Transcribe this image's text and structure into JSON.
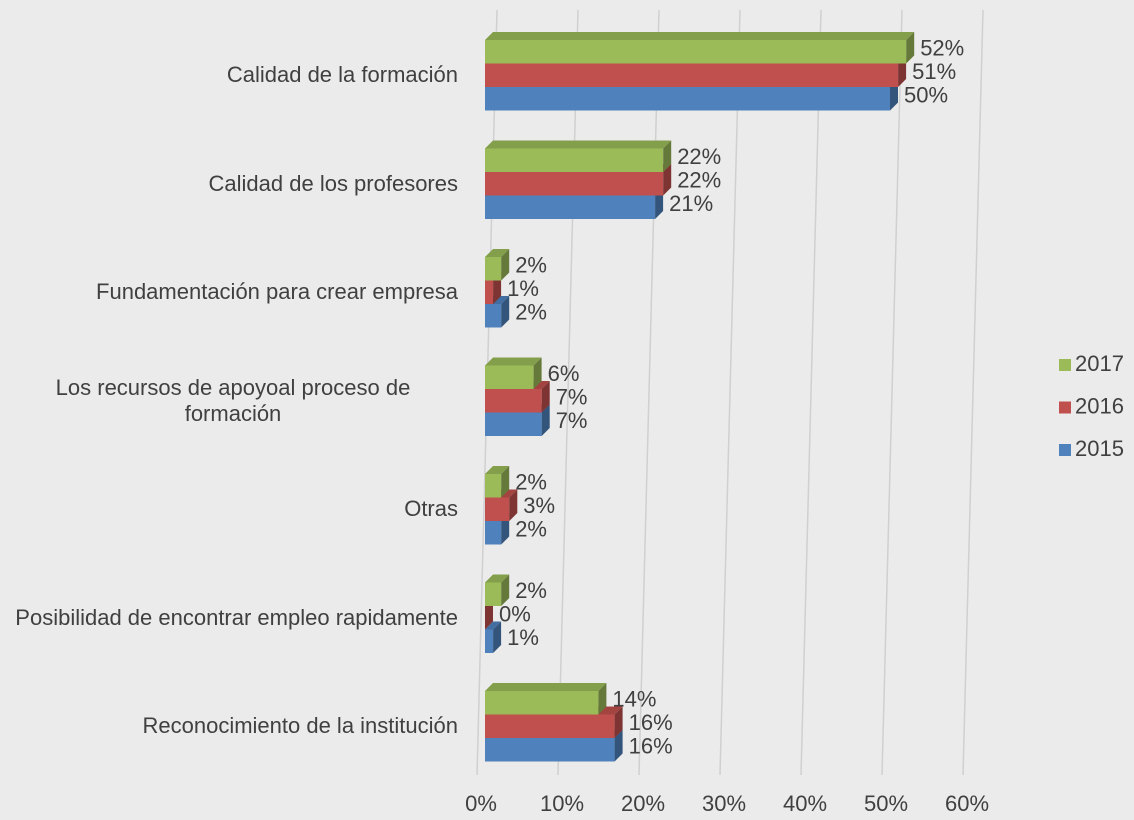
{
  "chart_data": {
    "type": "bar3d_horizontal",
    "categories": [
      "Calidad de la formación",
      "Calidad de los profesores",
      "Fundamentación para crear empresa",
      "Los recursos de apoyoal proceso de formación",
      "Otras",
      "Posibilidad de encontrar empleo rapidamente",
      "Reconocimiento de la institución"
    ],
    "series": [
      {
        "name": "2017",
        "color": "#9bbb59",
        "values": [
          52,
          22,
          2,
          6,
          2,
          2,
          14
        ],
        "value_labels": [
          "52%",
          "22%",
          "2%",
          "6%",
          "2%",
          "2%",
          "14%"
        ]
      },
      {
        "name": "2016",
        "color": "#c0504d",
        "values": [
          51,
          22,
          1,
          7,
          3,
          0,
          16
        ],
        "value_labels": [
          "51%",
          "22%",
          "1%",
          "7%",
          "3%",
          "0%",
          "16%"
        ]
      },
      {
        "name": "2015",
        "color": "#4f81bd",
        "values": [
          50,
          21,
          2,
          7,
          2,
          1,
          16
        ],
        "value_labels": [
          "50%",
          "21%",
          "2%",
          "7%",
          "2%",
          "1%",
          "16%"
        ]
      }
    ],
    "xlim": [
      0,
      60
    ],
    "xticks": [
      {
        "value": 0,
        "label": "0%"
      },
      {
        "value": 10,
        "label": "10%"
      },
      {
        "value": 20,
        "label": "20%"
      },
      {
        "value": 30,
        "label": "30%"
      },
      {
        "value": 40,
        "label": "40%"
      },
      {
        "value": 50,
        "label": "50%"
      },
      {
        "value": 60,
        "label": "60%"
      }
    ],
    "grid": true,
    "legend": "right"
  }
}
